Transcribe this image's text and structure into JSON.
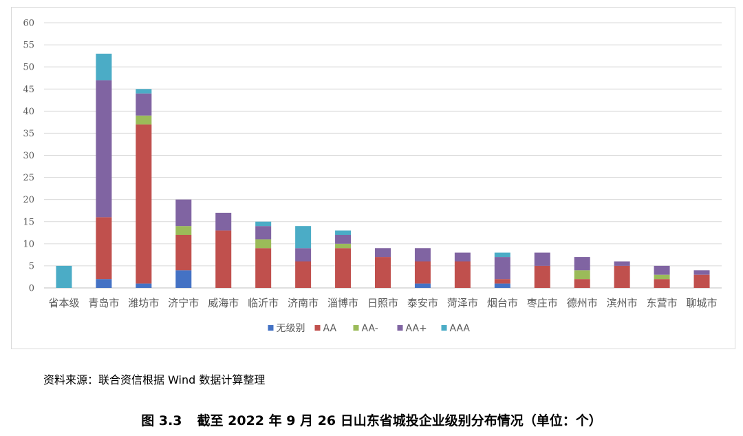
{
  "chart_data": {
    "type": "bar",
    "stacked": true,
    "categories": [
      "省本级",
      "青岛市",
      "潍坊市",
      "济宁市",
      "威海市",
      "临沂市",
      "济南市",
      "淄博市",
      "日照市",
      "泰安市",
      "菏泽市",
      "烟台市",
      "枣庄市",
      "德州市",
      "滨州市",
      "东营市",
      "聊城市"
    ],
    "series": [
      {
        "name": "无级别",
        "color": "#4472C4",
        "values": [
          0,
          2,
          1,
          4,
          0,
          0,
          0,
          0,
          0,
          1,
          0,
          1,
          0,
          0,
          0,
          0,
          0
        ]
      },
      {
        "name": "AA",
        "color": "#C0504D",
        "values": [
          0,
          14,
          36,
          8,
          13,
          9,
          6,
          9,
          7,
          5,
          6,
          1,
          5,
          2,
          5,
          2,
          3
        ]
      },
      {
        "name": "AA-",
        "color": "#9BBB59",
        "values": [
          0,
          0,
          2,
          2,
          0,
          2,
          0,
          1,
          0,
          0,
          0,
          0,
          0,
          2,
          0,
          1,
          0
        ]
      },
      {
        "name": "AA+",
        "color": "#8064A2",
        "values": [
          0,
          31,
          5,
          6,
          4,
          3,
          3,
          2,
          2,
          3,
          2,
          5,
          3,
          3,
          1,
          2,
          1
        ]
      },
      {
        "name": "AAA",
        "color": "#4BACC6",
        "values": [
          5,
          6,
          1,
          0,
          0,
          1,
          5,
          1,
          0,
          0,
          0,
          1,
          0,
          0,
          0,
          0,
          0
        ]
      }
    ],
    "ylim": [
      0,
      60
    ],
    "yticks": [
      0,
      5,
      10,
      15,
      20,
      25,
      30,
      35,
      40,
      45,
      50,
      55,
      60
    ],
    "grid": true,
    "legend_position": "bottom",
    "title": "",
    "xlabel": "",
    "ylabel": ""
  },
  "source_note": "资料来源：联合资信根据 Wind 数据计算整理",
  "caption": {
    "number": "图 3.3",
    "text": "截至 2022 年 9 月 26 日山东省城投企业级别分布情况（单位：个）"
  }
}
